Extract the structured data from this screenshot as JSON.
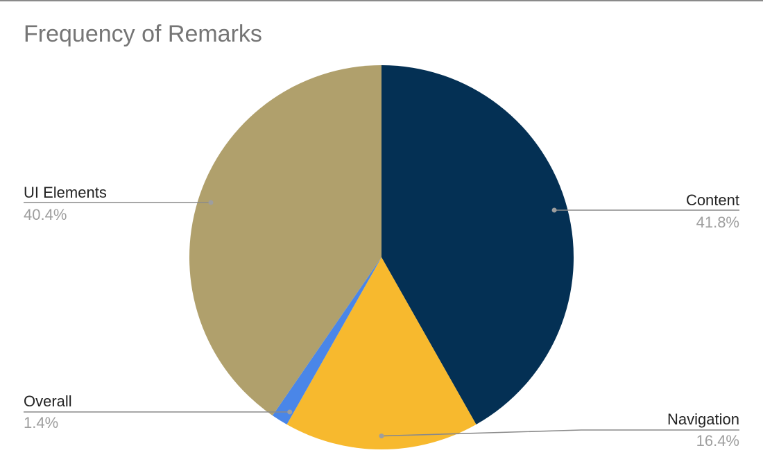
{
  "chart_data": {
    "type": "pie",
    "title": "Frequency of Remarks",
    "slices": [
      {
        "label": "Content",
        "value": 41.8,
        "display": "41.8%",
        "color": "#043054"
      },
      {
        "label": "Navigation",
        "value": 16.4,
        "display": "16.4%",
        "color": "#f7b92e"
      },
      {
        "label": "Overall",
        "value": 1.4,
        "display": "1.4%",
        "color": "#4a86e8"
      },
      {
        "label": "UI Elements",
        "value": 40.4,
        "display": "40.4%",
        "color": "#b0a06c"
      }
    ],
    "start_angle_deg": 0,
    "direction": "clockwise",
    "legend": "none"
  }
}
